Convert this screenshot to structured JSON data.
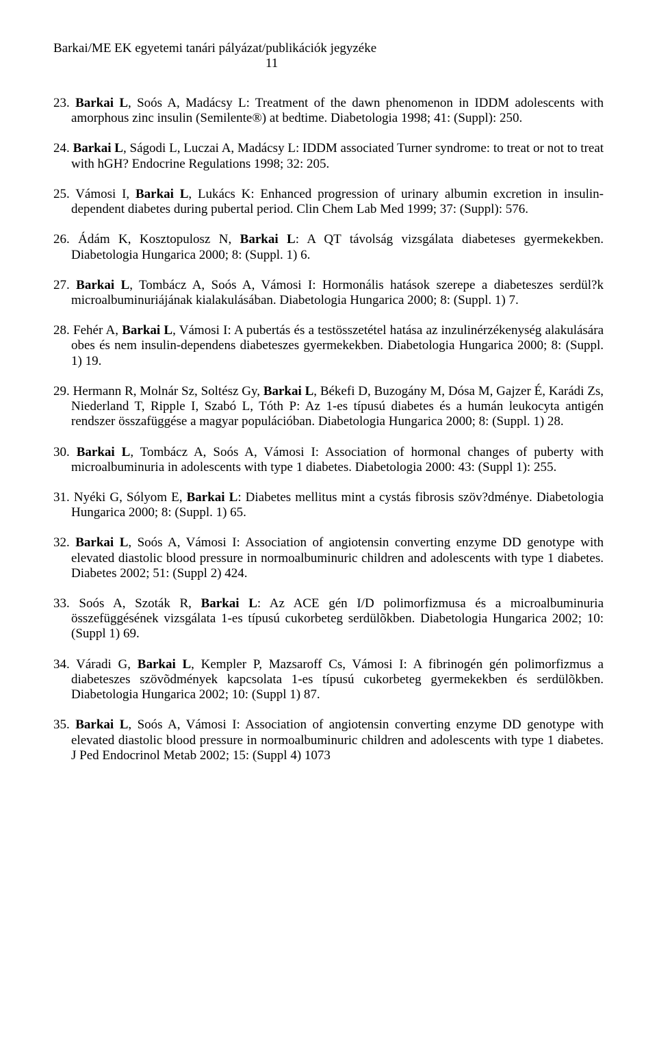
{
  "header": {
    "runningTitle": "Barkai/ME EK egyetemi tanári pályázat/publikációk jegyzéke",
    "pageNumber": "11"
  },
  "entries": [
    {
      "num": "23.",
      "pre": "",
      "bold": "Barkai L",
      "post": ", Soós A, Madácsy L: Treatment of the dawn phenomenon in IDDM adolescents with amorphous zinc insulin (Semilente®) at bedtime. Diabetologia 1998; 41: (Suppl): 250."
    },
    {
      "num": "24.",
      "pre": "",
      "bold": "Barkai L",
      "post": ", Ságodi L, Luczai A, Madácsy L: IDDM associated Turner syndrome: to treat or not to treat with hGH? Endocrine Regulations 1998; 32: 205."
    },
    {
      "num": "25.",
      "pre": "Vámosi I, ",
      "bold": "Barkai L",
      "post": ", Lukács K: Enhanced progression of urinary albumin excretion in insulin-dependent diabetes during pubertal period. Clin Chem Lab Med 1999; 37: (Suppl): 576."
    },
    {
      "num": "26.",
      "pre": "Ádám K, Kosztopulosz N, ",
      "bold": "Barkai L",
      "post": ": A QT távolság vizsgálata diabeteses gyermekekben. Diabetologia Hungarica 2000; 8: (Suppl. 1) 6."
    },
    {
      "num": "27.",
      "pre": "",
      "bold": "Barkai L",
      "post": ", Tombácz A, Soós A, Vámosi I: Hormonális hatások szerepe a diabeteszes serdül?k microalbuminuriájának kialakulásában. Diabetologia Hungarica 2000; 8: (Suppl. 1) 7."
    },
    {
      "num": "28.",
      "pre": "Fehér A, ",
      "bold": "Barkai L",
      "post": ", Vámosi I: A pubertás és a testösszetétel hatása az inzulinérzékenység alakulására obes és nem insulin-dependens diabeteszes gyermekekben. Diabetologia Hungarica 2000; 8: (Suppl. 1) 19."
    },
    {
      "num": "29.",
      "pre": "Hermann R, Molnár Sz, Soltész Gy, ",
      "bold": "Barkai L",
      "post": ", Békefi D, Buzogány M, Dósa M, Gajzer É, Karádi Zs, Niederland T, Ripple I, Szabó L, Tóth P: Az 1-es típusú diabetes és a humán leukocyta antigén rendszer összafüggése a magyar populációban. Diabetologia Hungarica 2000; 8: (Suppl. 1) 28."
    },
    {
      "num": "30.",
      "pre": "",
      "bold": "Barkai L",
      "post": ", Tombácz A, Soós A, Vámosi I: Association of hormonal changes of puberty with microalbuminuria in adolescents with type 1 diabetes. Diabetologia 2000: 43: (Suppl 1): 255."
    },
    {
      "num": "31.",
      "pre": "Nyéki G, Sólyom E, ",
      "bold": "Barkai L",
      "post": ": Diabetes mellitus mint a cystás fibrosis szöv?dménye. Diabetologia Hungarica 2000; 8: (Suppl. 1) 65."
    },
    {
      "num": "32.",
      "pre": "",
      "bold": "Barkai L",
      "post": ", Soós A, Vámosi I: Association of angiotensin converting enzyme DD genotype with elevated diastolic blood pressure in normoalbuminuric children and adolescents with type 1 diabetes. Diabetes 2002; 51: (Suppl 2) 424."
    },
    {
      "num": "33.",
      "pre": "Soós A, Szoták R, ",
      "bold": "Barkai L",
      "post": ": Az ACE gén I/D polimorfizmusa és a microalbuminuria összefüggésének vizsgálata 1-es típusú cukorbeteg serdülõkben. Diabetologia Hungarica 2002; 10: (Suppl 1) 69."
    },
    {
      "num": "34.",
      "pre": "Váradi G, ",
      "bold": "Barkai L",
      "post": ", Kempler P, Mazsaroff Cs, Vámosi I: A fibrinogén gén polimorfizmus a diabeteszes szövõdmények kapcsolata 1-es típusú cukorbeteg gyermekekben és serdülõkben. Diabetologia Hungarica 2002; 10: (Suppl 1) 87."
    },
    {
      "num": "35.",
      "pre": "",
      "bold": "Barkai L",
      "post": ", Soós A, Vámosi I: Association of angiotensin converting enzyme DD genotype with elevated diastolic blood pressure in normoalbuminuric children and adolescents with type 1 diabetes. J Ped Endocrinol Metab 2002; 15: (Suppl 4) 1073"
    }
  ]
}
